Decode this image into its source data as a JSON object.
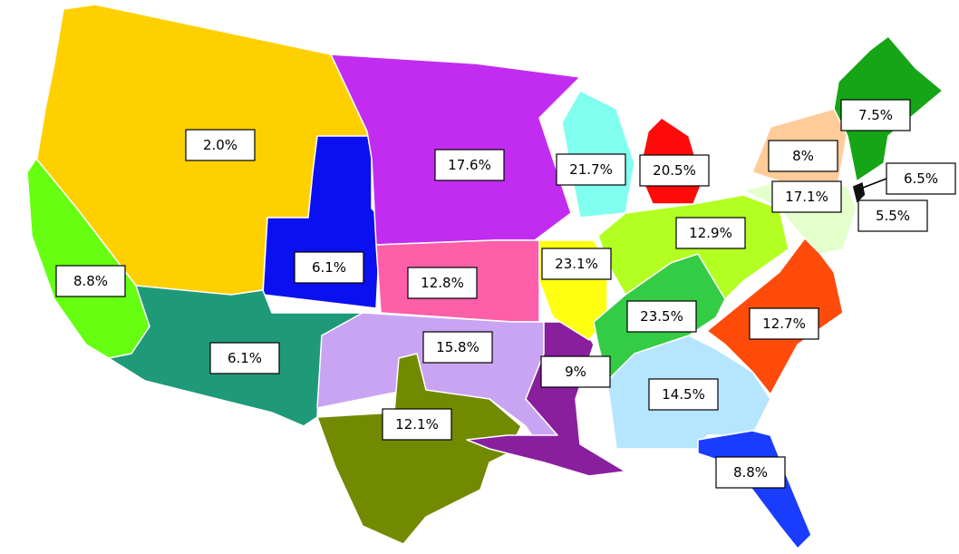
{
  "regions": [
    {
      "label": "2.0%"
    },
    {
      "label": "6.1%"
    },
    {
      "label": "8.8%"
    },
    {
      "label": "6.1%"
    },
    {
      "label": "17.6%"
    },
    {
      "label": "12.8%"
    },
    {
      "label": "15.8%"
    },
    {
      "label": "12.1%"
    },
    {
      "label": "9%"
    },
    {
      "label": "23.1%"
    },
    {
      "label": "21.7%"
    },
    {
      "label": "20.5%"
    },
    {
      "label": "12.9%"
    },
    {
      "label": "23.5%"
    },
    {
      "label": "12.7%"
    },
    {
      "label": "14.5%"
    },
    {
      "label": "8.8%"
    },
    {
      "label": "8%"
    },
    {
      "label": "7.5%"
    },
    {
      "label": "17.1%"
    },
    {
      "label": "6.5%"
    },
    {
      "label": "5.5%"
    }
  ]
}
